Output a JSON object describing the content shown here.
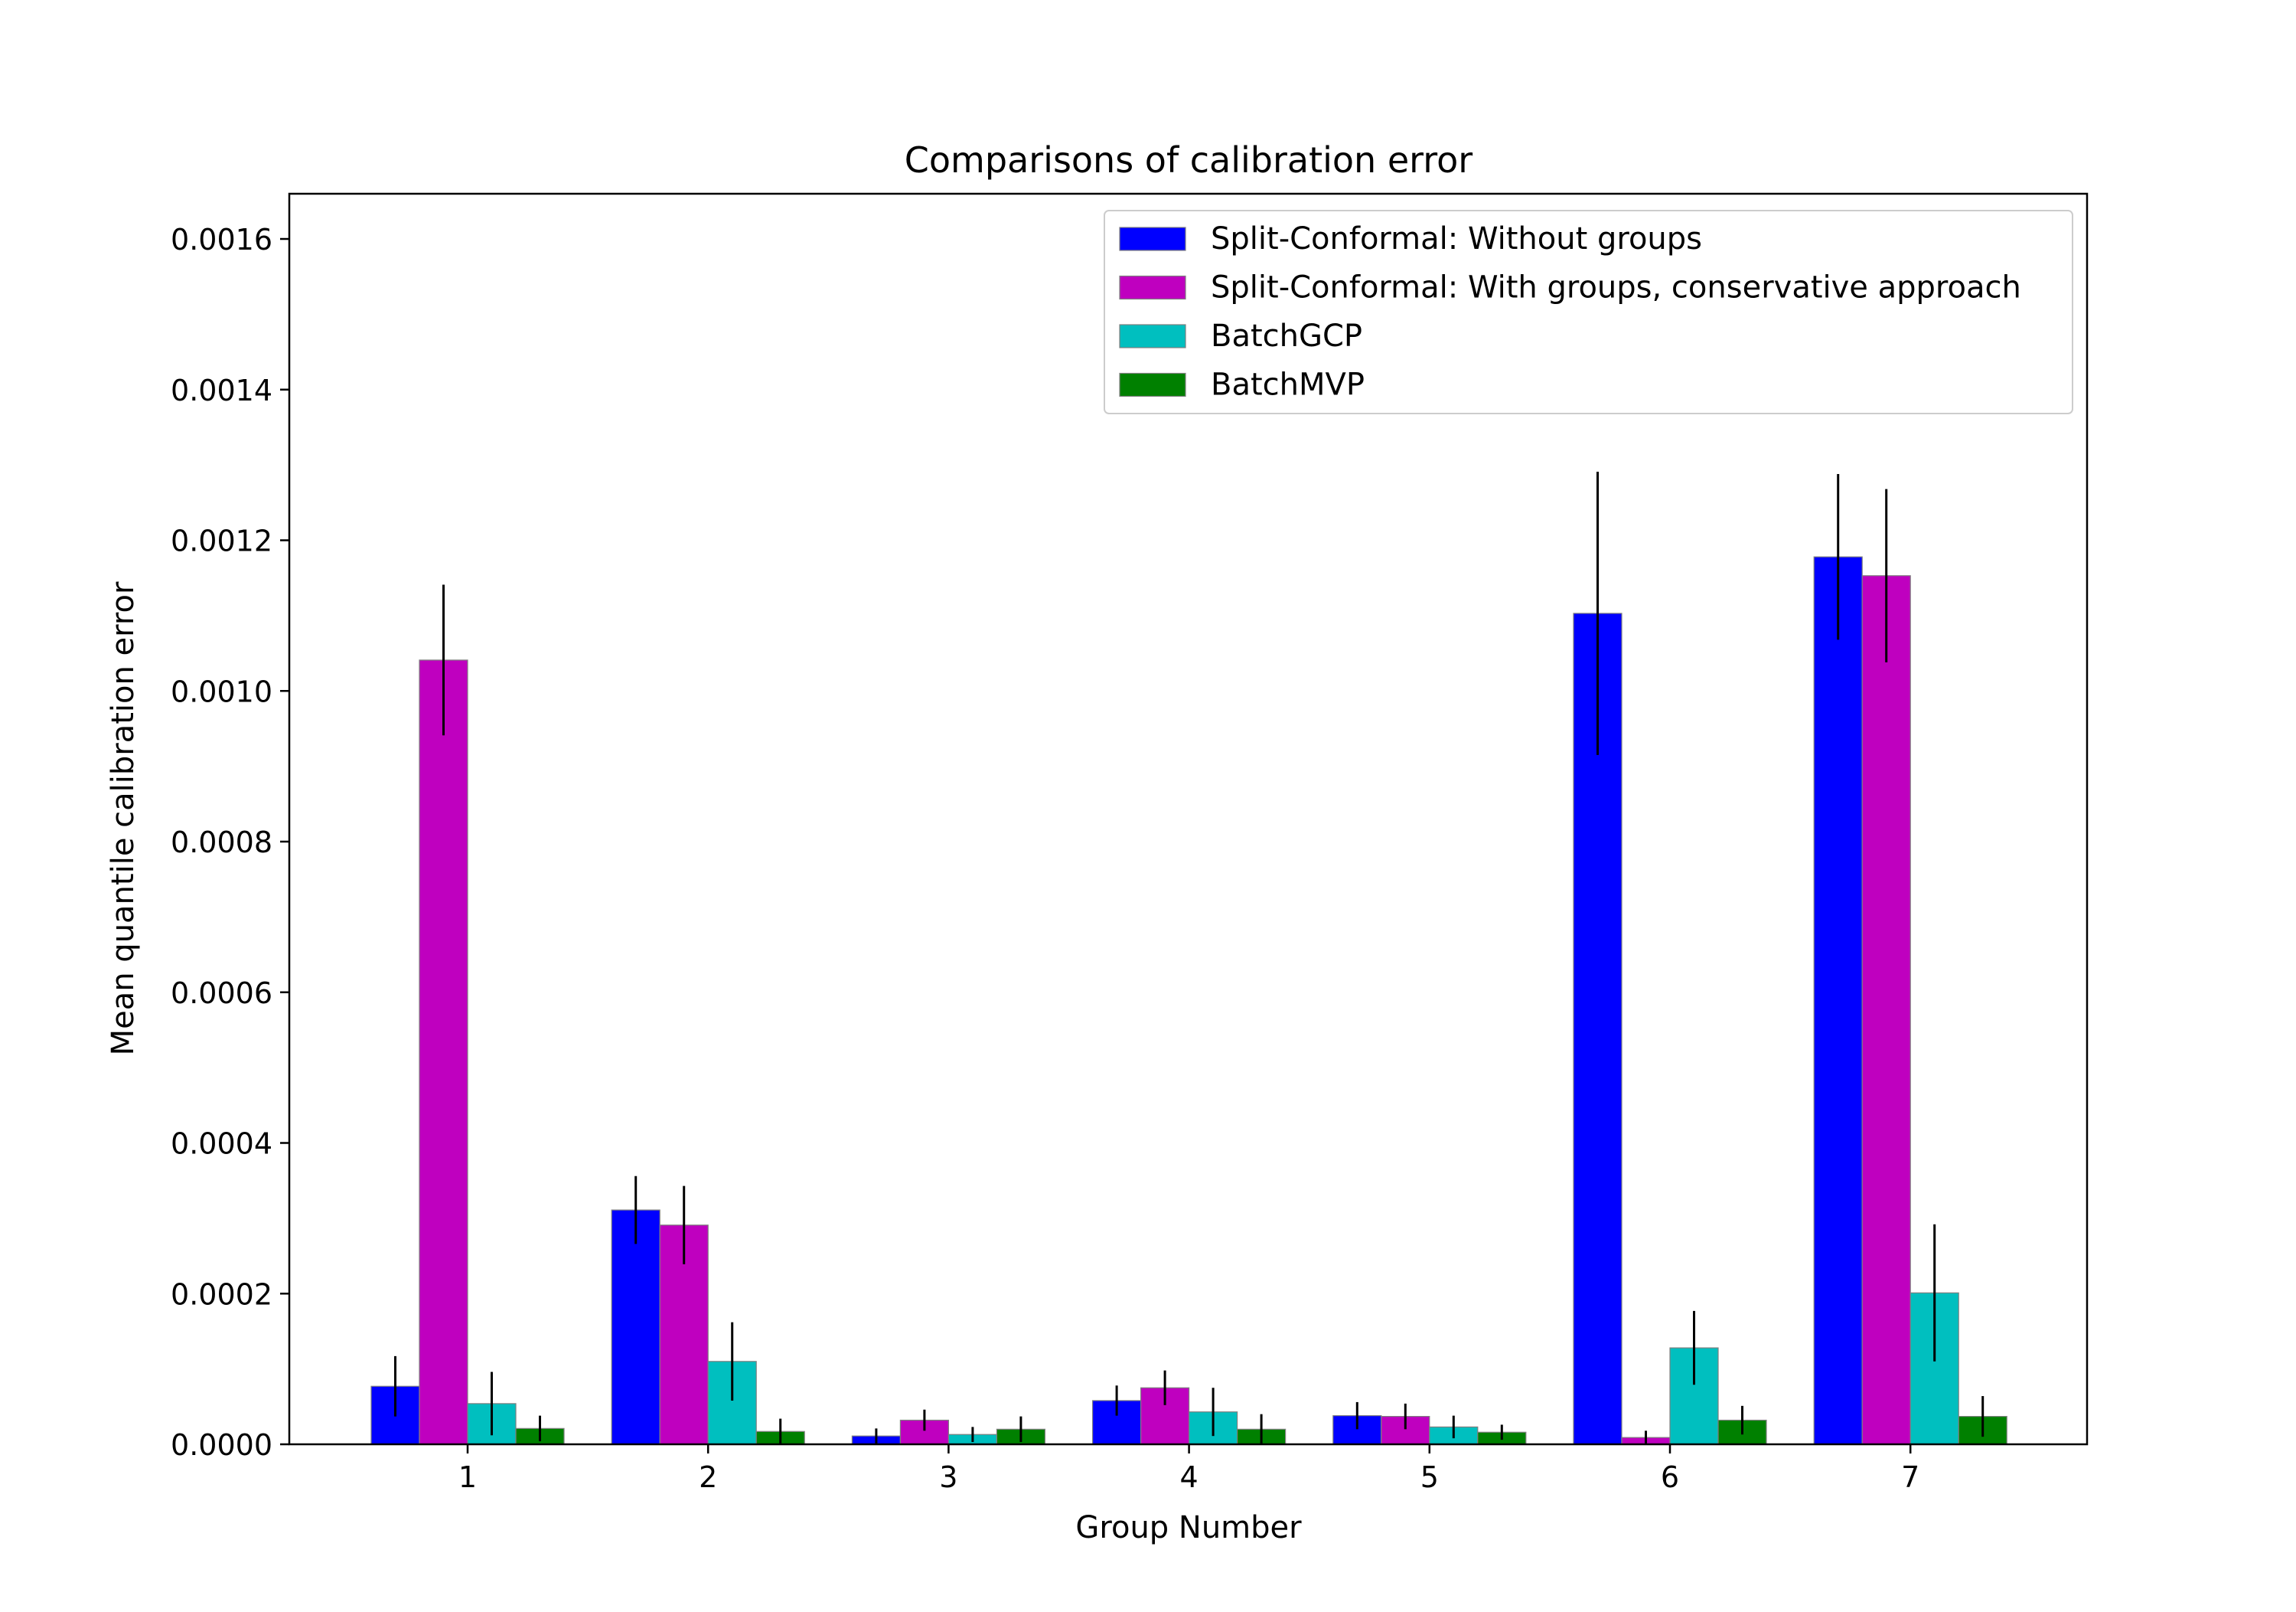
{
  "chart_data": {
    "type": "bar",
    "title": "Comparisons of calibration error",
    "xlabel": "Group Number",
    "ylabel": "Mean quantile calibration error",
    "categories": [
      "1",
      "2",
      "3",
      "4",
      "5",
      "6",
      "7"
    ],
    "ylim": [
      0,
      0.00166
    ],
    "yticks": [
      "0.0000",
      "0.0002",
      "0.0004",
      "0.0006",
      "0.0008",
      "0.0010",
      "0.0012",
      "0.0014",
      "0.0016"
    ],
    "ytick_values": [
      0,
      0.0002,
      0.0004,
      0.0006,
      0.0008,
      0.001,
      0.0012,
      0.0014,
      0.0016
    ],
    "legend_position": "top-right",
    "series": [
      {
        "name": "Split-Conformal: Without groups",
        "color": "#0000ff",
        "values": [
          7.7e-05,
          0.000311,
          1.1e-05,
          5.8e-05,
          3.8e-05,
          0.001103,
          0.001178
        ],
        "errors": [
          4e-05,
          4.5e-05,
          1e-05,
          2e-05,
          1.8e-05,
          0.000188,
          0.00011
        ]
      },
      {
        "name": "Split-Conformal: With groups, conservative approach",
        "color": "#bf00bf",
        "values": [
          0.001041,
          0.000291,
          3.2e-05,
          7.5e-05,
          3.7e-05,
          9e-06,
          0.001153
        ],
        "errors": [
          0.0001,
          5.2e-05,
          1.4e-05,
          2.3e-05,
          1.7e-05,
          9e-06,
          0.000115
        ]
      },
      {
        "name": "BatchGCP",
        "color": "#00bfbf",
        "values": [
          5.4e-05,
          0.00011,
          1.3e-05,
          4.3e-05,
          2.3e-05,
          0.000128,
          0.000201
        ],
        "errors": [
          4.2e-05,
          5.2e-05,
          1e-05,
          3.2e-05,
          1.5e-05,
          4.9e-05,
          9.1e-05
        ]
      },
      {
        "name": "BatchMVP",
        "color": "#008000",
        "values": [
          2.1e-05,
          1.7e-05,
          2e-05,
          2e-05,
          1.6e-05,
          3.2e-05,
          3.7e-05
        ],
        "errors": [
          1.7e-05,
          1.7e-05,
          1.7e-05,
          2e-05,
          1e-05,
          1.9e-05,
          2.7e-05
        ]
      }
    ]
  }
}
